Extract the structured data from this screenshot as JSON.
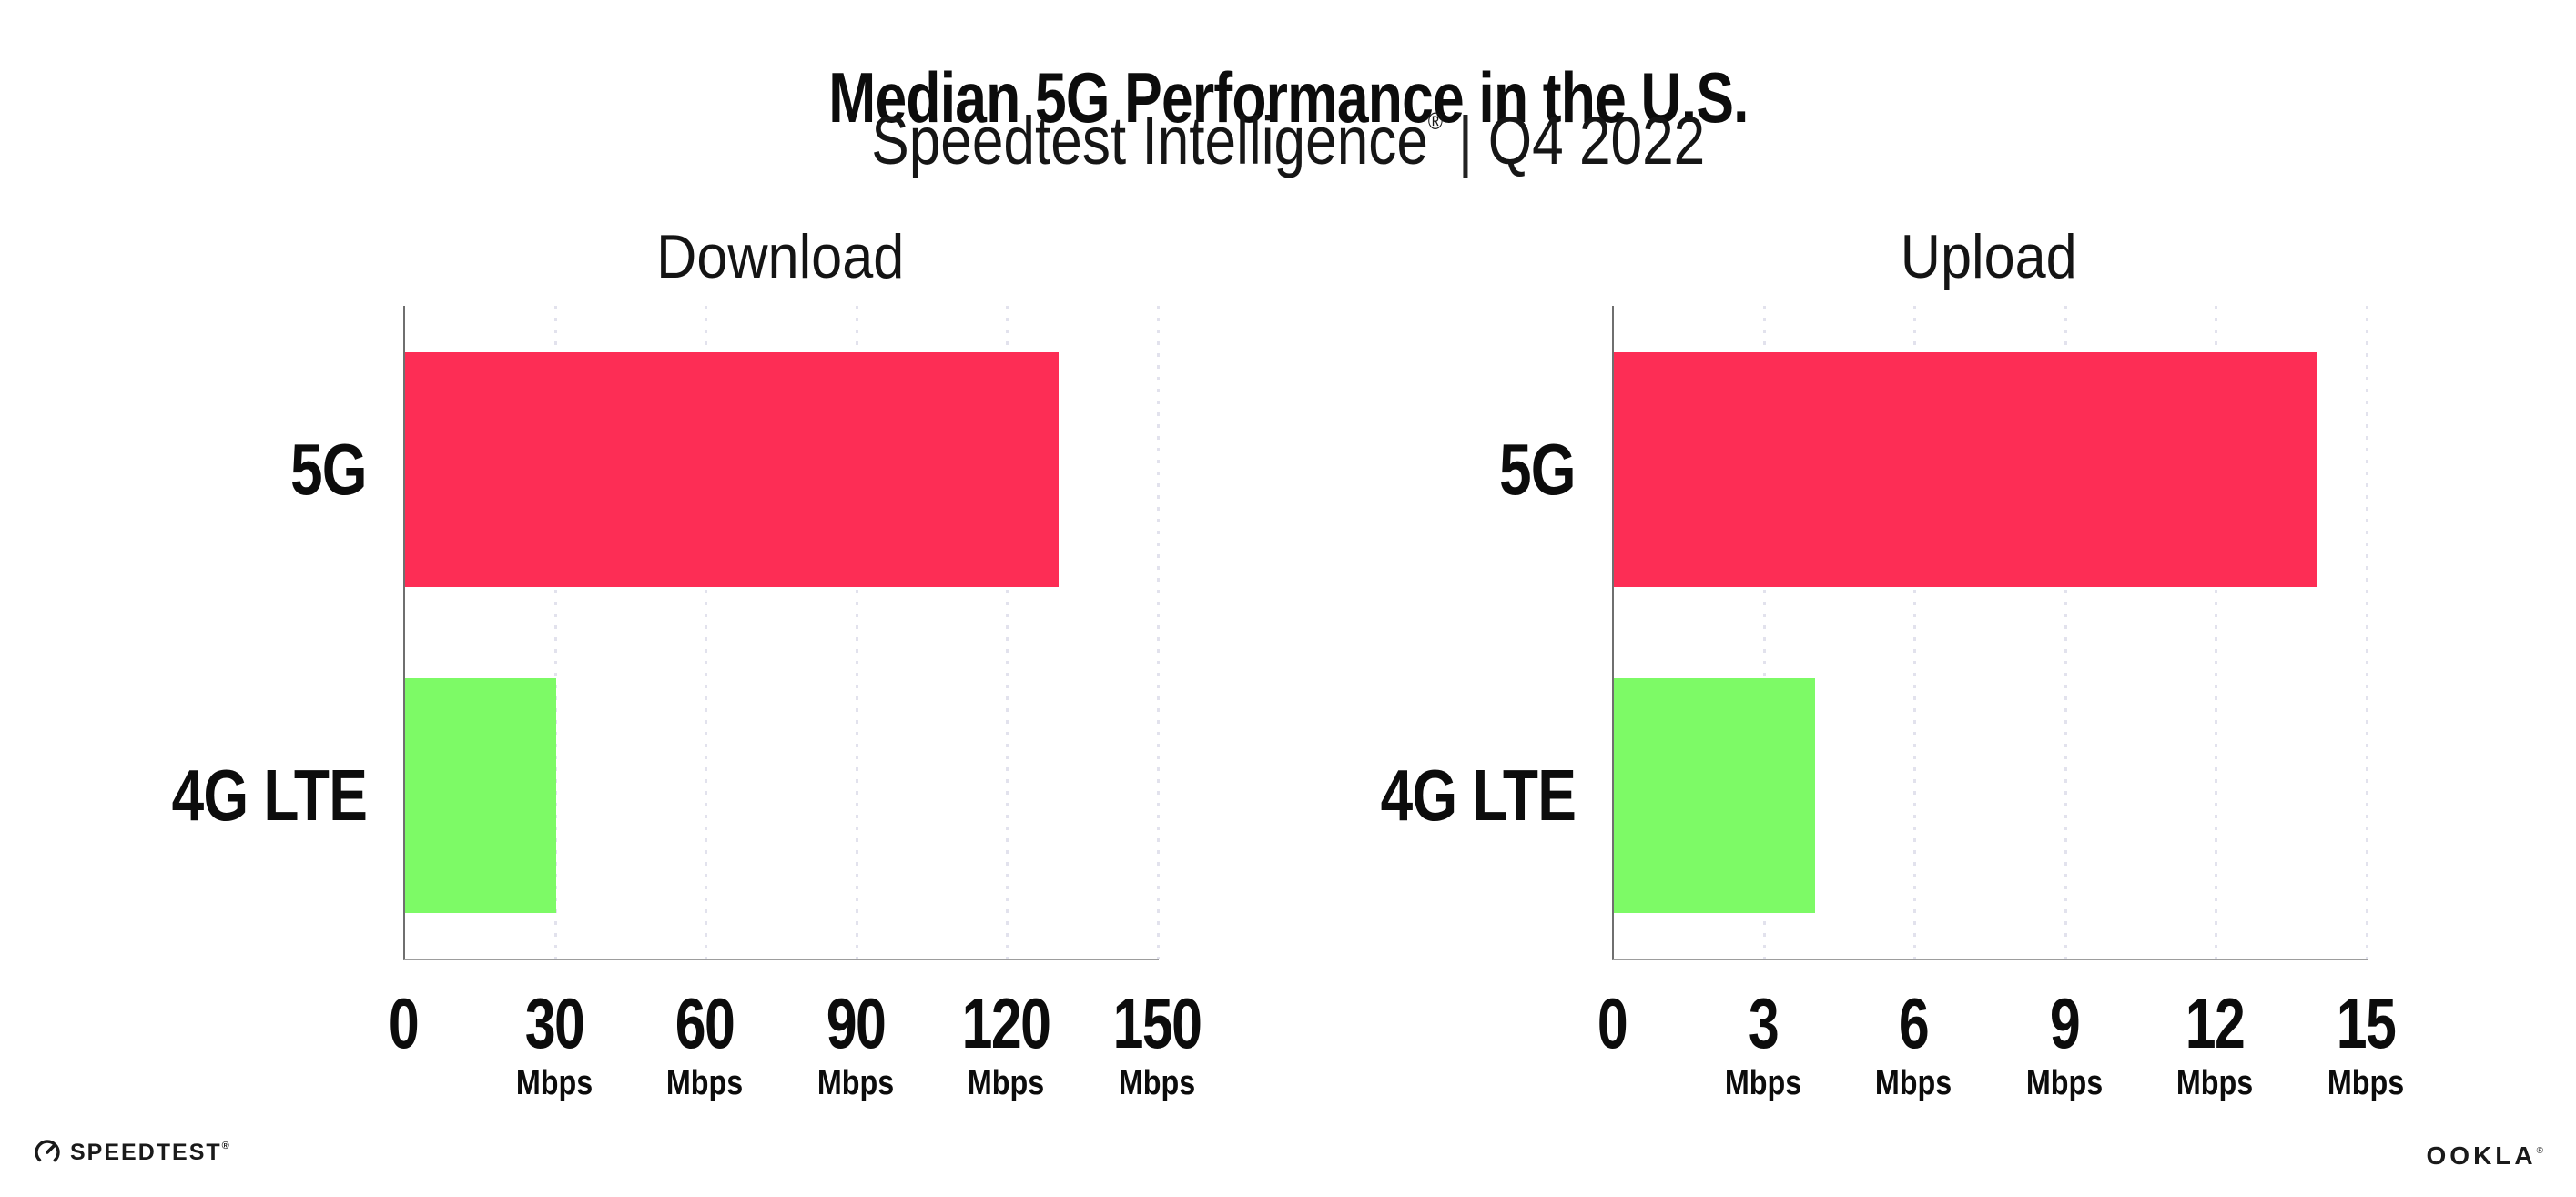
{
  "header": {
    "title": "Median 5G Performance in the U.S.",
    "subtitle": {
      "brand": "Speedtest Intelligence",
      "trademark": "®",
      "separator": "|",
      "period": "Q4 2022"
    }
  },
  "chart_data": [
    {
      "type": "bar",
      "orientation": "horizontal",
      "title": "Download",
      "categories": [
        "5G",
        "4G LTE"
      ],
      "values": [
        130,
        30
      ],
      "unit": "Mbps",
      "xlim": [
        0,
        150
      ],
      "xticks": [
        0,
        30,
        60,
        90,
        120,
        150
      ],
      "bar_colors": [
        "#FD2D55",
        "#7DFA66"
      ],
      "grid": "dotted-vertical",
      "legend": "none"
    },
    {
      "type": "bar",
      "orientation": "horizontal",
      "title": "Upload",
      "categories": [
        "5G",
        "4G LTE"
      ],
      "values": [
        14,
        4
      ],
      "unit": "Mbps",
      "xlim": [
        0,
        15
      ],
      "xticks": [
        0,
        3,
        6,
        9,
        12,
        15
      ],
      "bar_colors": [
        "#FD2D55",
        "#7DFA66"
      ],
      "grid": "dotted-vertical",
      "legend": "none"
    }
  ],
  "footer": {
    "speedtest": {
      "text": "SPEEDTEST",
      "trademark": "®",
      "icon": "speedtest-gauge-icon"
    },
    "ookla": {
      "text": "OOKLA",
      "trademark": "®"
    }
  },
  "colors": {
    "bar_5g": "#FD2D55",
    "bar_4g_lte": "#7DFA66",
    "gridline": "#E2E2ED",
    "axis_y": "#6F6F6F",
    "axis_x": "#9D9D9D",
    "text": "#111111"
  }
}
